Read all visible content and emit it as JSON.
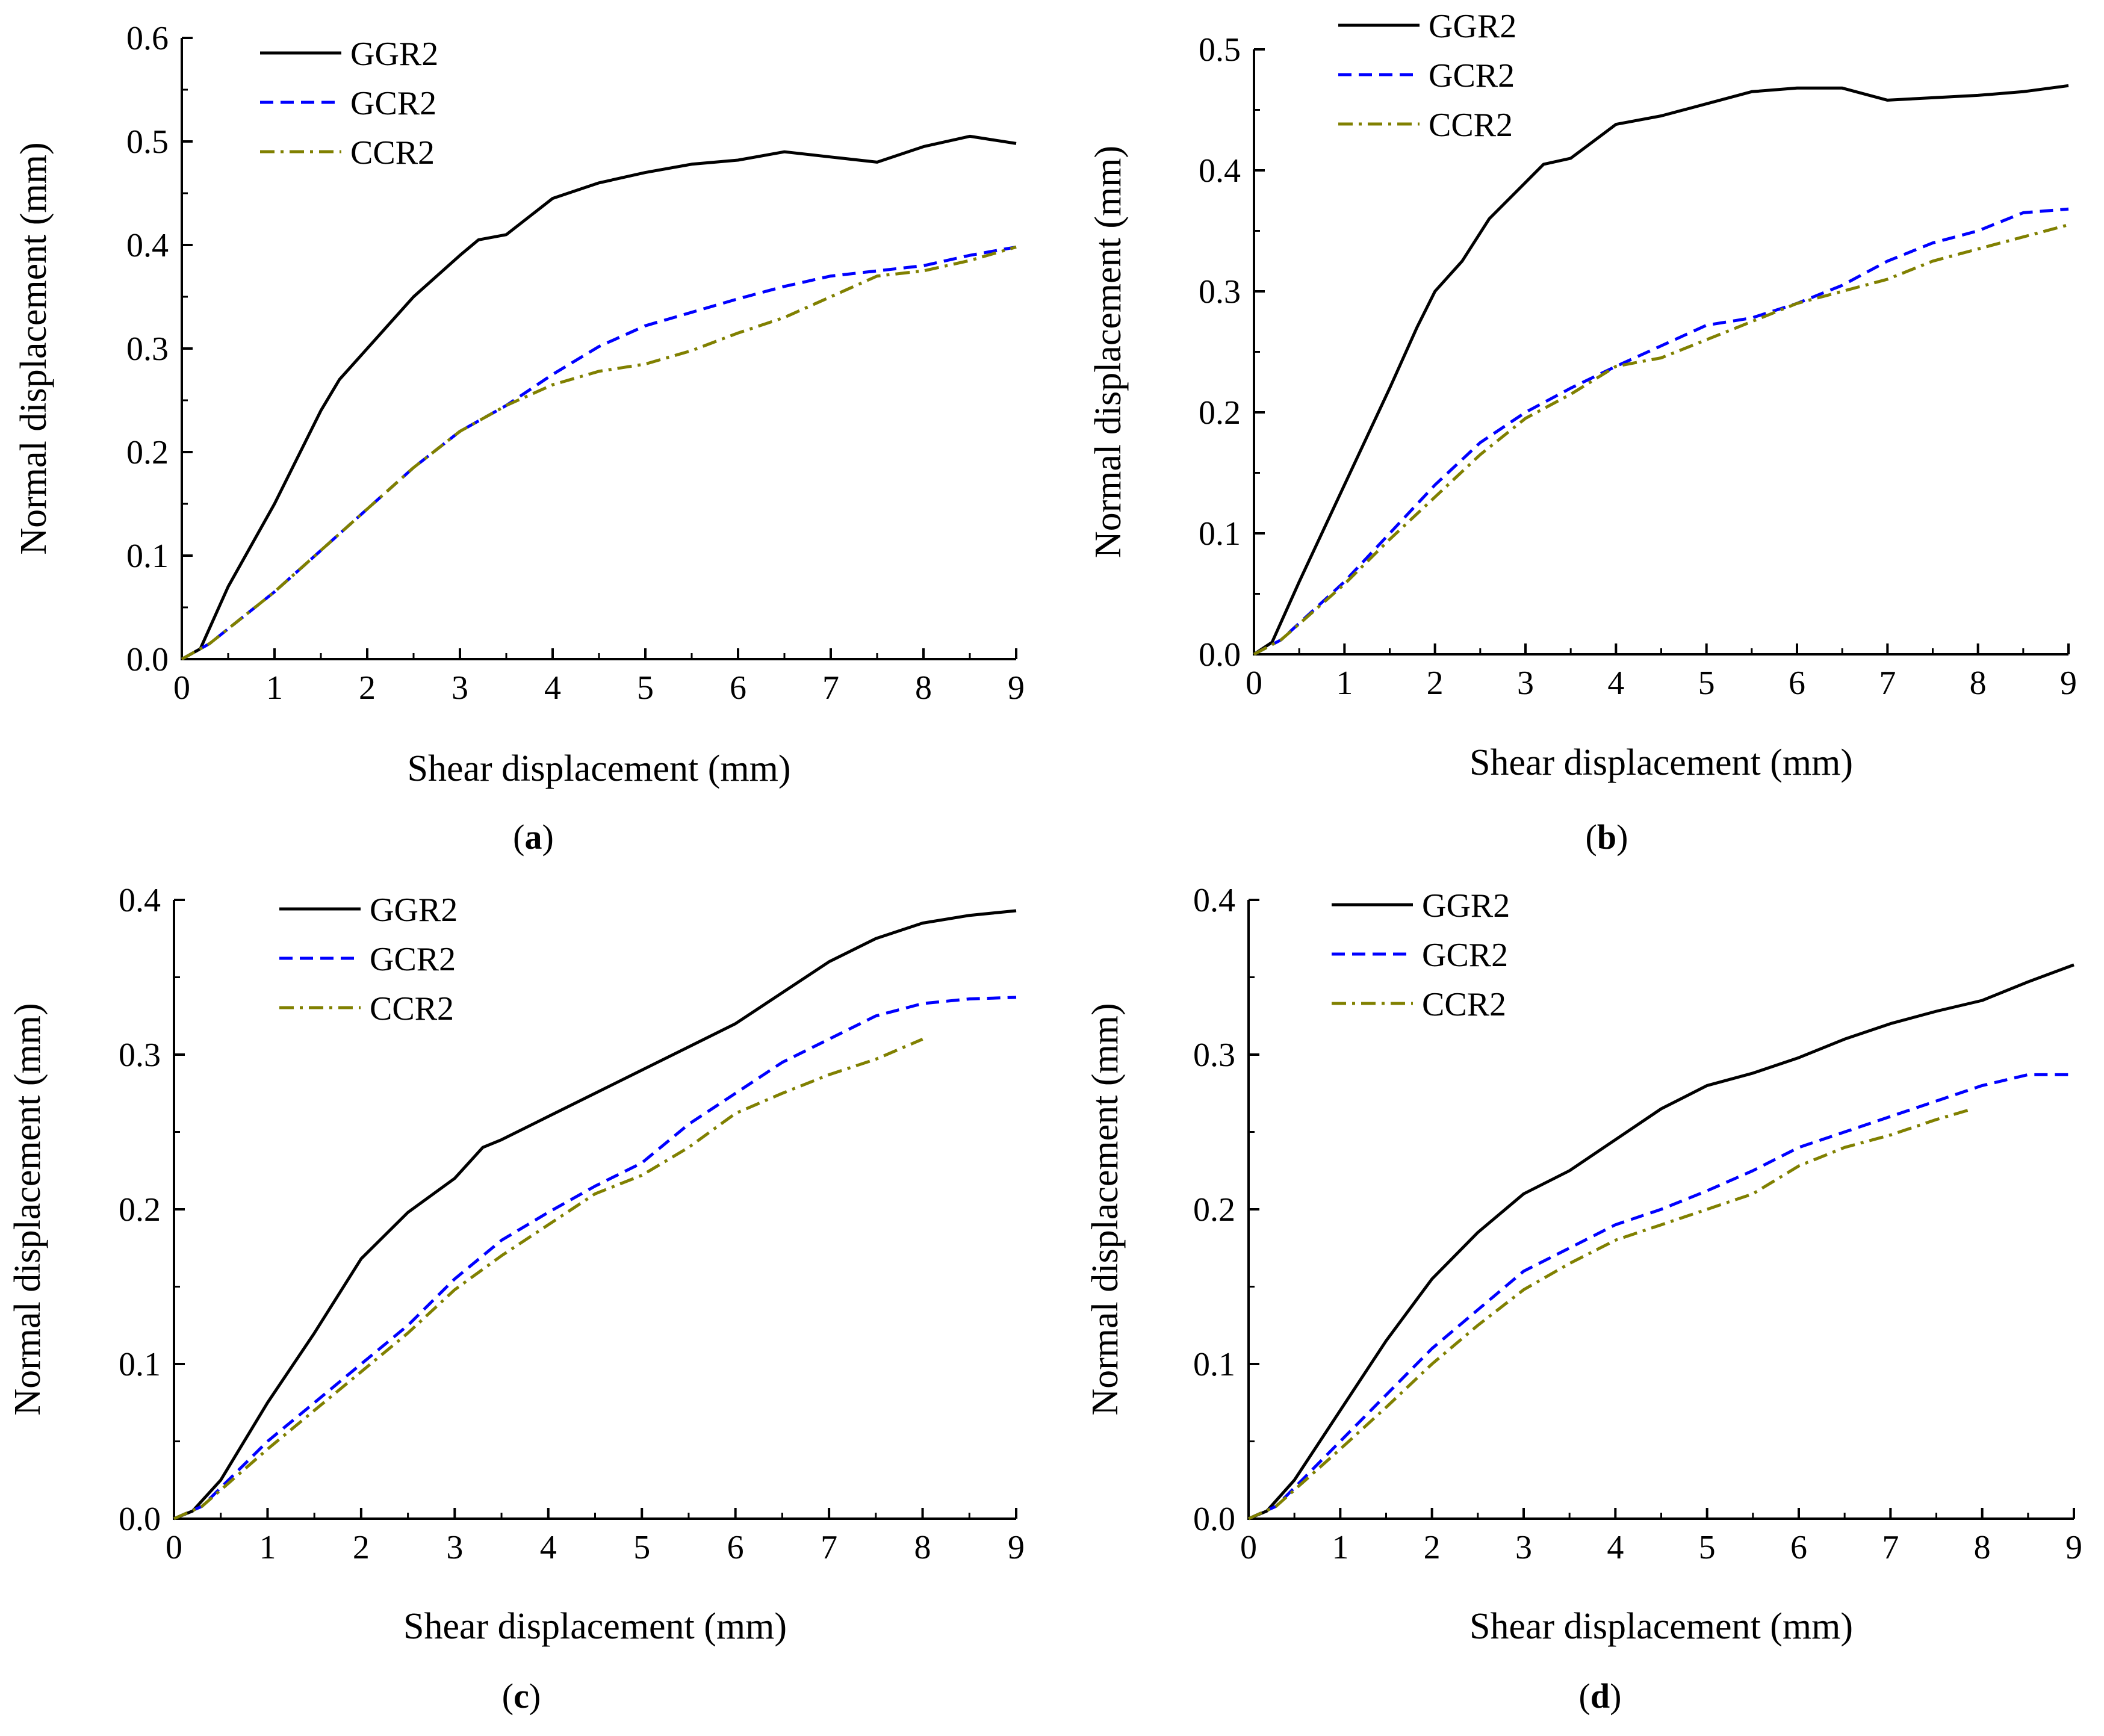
{
  "figure": {
    "panels": [
      {
        "label_prefix": "(",
        "label_letter": "a",
        "label_suffix": ")"
      },
      {
        "label_prefix": "(",
        "label_letter": "b",
        "label_suffix": ")"
      },
      {
        "label_prefix": "(",
        "label_letter": "c",
        "label_suffix": ")"
      },
      {
        "label_prefix": "(",
        "label_letter": "d",
        "label_suffix": ")"
      }
    ],
    "colors": {
      "GGR2": "#000000",
      "GCR2": "#0000ff",
      "CCR2": "#808000"
    }
  },
  "chart_data": [
    {
      "type": "line",
      "xlabel": "Shear displacement (mm)",
      "ylabel": "Normal displacement (mm)",
      "xlim": [
        0,
        9
      ],
      "ylim": [
        0,
        0.6
      ],
      "xticks": [
        "0",
        "1",
        "2",
        "3",
        "4",
        "5",
        "6",
        "7",
        "8",
        "9"
      ],
      "yticks": [
        "0.0",
        "0.1",
        "0.2",
        "0.3",
        "0.4",
        "0.5",
        "0.6"
      ],
      "legend_position": "top-left",
      "series": [
        {
          "name": "GGR2",
          "style": "solid",
          "x": [
            0,
            0.2,
            0.5,
            1,
            1.5,
            1.7,
            2,
            2.2,
            2.5,
            3,
            3.2,
            3.5,
            4,
            4.5,
            5,
            5.5,
            6,
            6.5,
            7,
            7.5,
            8,
            8.5,
            9
          ],
          "y": [
            0,
            0.01,
            0.07,
            0.15,
            0.24,
            0.27,
            0.3,
            0.32,
            0.35,
            0.39,
            0.405,
            0.41,
            0.445,
            0.46,
            0.47,
            0.478,
            0.482,
            0.49,
            0.485,
            0.48,
            0.495,
            0.505,
            0.498
          ]
        },
        {
          "name": "GCR2",
          "style": "dashed",
          "x": [
            0,
            0.3,
            1,
            1.5,
            2,
            2.5,
            3,
            3.5,
            4,
            4.5,
            5,
            5.5,
            6,
            6.5,
            7,
            7.5,
            8,
            8.5,
            9
          ],
          "y": [
            0,
            0.015,
            0.065,
            0.105,
            0.145,
            0.185,
            0.22,
            0.245,
            0.275,
            0.302,
            0.322,
            0.335,
            0.348,
            0.36,
            0.37,
            0.375,
            0.38,
            0.39,
            0.398
          ]
        },
        {
          "name": "CCR2",
          "style": "dashdot",
          "x": [
            0,
            0.3,
            1,
            1.5,
            2,
            2.5,
            3,
            3.5,
            4,
            4.5,
            5,
            5.5,
            6,
            6.5,
            7,
            7.5,
            8,
            8.5,
            9
          ],
          "y": [
            0,
            0.015,
            0.065,
            0.105,
            0.145,
            0.185,
            0.22,
            0.245,
            0.265,
            0.278,
            0.285,
            0.298,
            0.315,
            0.33,
            0.35,
            0.37,
            0.375,
            0.385,
            0.398
          ]
        }
      ]
    },
    {
      "type": "line",
      "xlabel": "Shear displacement (mm)",
      "ylabel": "Normal displacement (mm)",
      "xlim": [
        0,
        9
      ],
      "ylim": [
        0,
        0.5
      ],
      "xticks": [
        "0",
        "1",
        "2",
        "3",
        "4",
        "5",
        "6",
        "7",
        "8",
        "9"
      ],
      "yticks": [
        "0.0",
        "0.1",
        "0.2",
        "0.3",
        "0.4",
        "0.5"
      ],
      "legend_position": "top-left",
      "series": [
        {
          "name": "GGR2",
          "style": "solid",
          "x": [
            0,
            0.2,
            0.5,
            1,
            1.5,
            1.8,
            2,
            2.3,
            2.6,
            3,
            3.2,
            3.5,
            4,
            4.5,
            5,
            5.5,
            6,
            6.5,
            7,
            7.5,
            8,
            8.5,
            9
          ],
          "y": [
            0,
            0.01,
            0.06,
            0.14,
            0.22,
            0.27,
            0.3,
            0.325,
            0.36,
            0.39,
            0.405,
            0.41,
            0.438,
            0.445,
            0.455,
            0.465,
            0.468,
            0.468,
            0.458,
            0.46,
            0.462,
            0.465,
            0.47
          ]
        },
        {
          "name": "GCR2",
          "style": "dashed",
          "x": [
            0,
            0.3,
            1,
            1.5,
            2,
            2.5,
            3,
            3.5,
            4,
            4.5,
            5,
            5.5,
            6,
            6.5,
            7,
            7.5,
            8,
            8.5,
            9
          ],
          "y": [
            0,
            0.012,
            0.06,
            0.1,
            0.14,
            0.175,
            0.2,
            0.22,
            0.238,
            0.255,
            0.272,
            0.278,
            0.29,
            0.305,
            0.325,
            0.34,
            0.35,
            0.365,
            0.368
          ]
        },
        {
          "name": "CCR2",
          "style": "dashdot",
          "x": [
            0,
            0.3,
            1,
            1.5,
            2,
            2.5,
            3,
            3.5,
            4,
            4.5,
            5,
            5.5,
            6,
            6.5,
            7,
            7.5,
            8,
            8.5,
            9
          ],
          "y": [
            0,
            0.012,
            0.058,
            0.095,
            0.13,
            0.165,
            0.195,
            0.215,
            0.238,
            0.245,
            0.26,
            0.275,
            0.29,
            0.3,
            0.31,
            0.325,
            0.335,
            0.345,
            0.355
          ]
        }
      ]
    },
    {
      "type": "line",
      "xlabel": "Shear displacement (mm)",
      "ylabel": "Normal displacement (mm)",
      "xlim": [
        0,
        9
      ],
      "ylim": [
        0,
        0.4
      ],
      "xticks": [
        "0",
        "1",
        "2",
        "3",
        "4",
        "5",
        "6",
        "7",
        "8",
        "9"
      ],
      "yticks": [
        "0.0",
        "0.1",
        "0.2",
        "0.3",
        "0.4"
      ],
      "legend_position": "top-left",
      "series": [
        {
          "name": "GGR2",
          "style": "solid",
          "x": [
            0,
            0.2,
            0.5,
            1,
            1.5,
            2,
            2.5,
            3,
            3.3,
            3.5,
            4,
            4.5,
            5,
            5.5,
            6,
            6.5,
            7,
            7.5,
            8,
            8.5,
            9
          ],
          "y": [
            0,
            0.005,
            0.025,
            0.075,
            0.12,
            0.168,
            0.198,
            0.22,
            0.24,
            0.245,
            0.26,
            0.275,
            0.29,
            0.305,
            0.32,
            0.34,
            0.36,
            0.375,
            0.385,
            0.39,
            0.393
          ]
        },
        {
          "name": "GCR2",
          "style": "dashed",
          "x": [
            0,
            0.3,
            1,
            1.5,
            2,
            2.5,
            3,
            3.5,
            4,
            4.5,
            5,
            5.5,
            6,
            6.5,
            7,
            7.5,
            8,
            8.5,
            9
          ],
          "y": [
            0,
            0.008,
            0.05,
            0.075,
            0.1,
            0.125,
            0.155,
            0.18,
            0.198,
            0.215,
            0.23,
            0.255,
            0.275,
            0.295,
            0.31,
            0.325,
            0.333,
            0.336,
            0.337
          ]
        },
        {
          "name": "CCR2",
          "style": "dashdot",
          "x": [
            0,
            0.3,
            1,
            1.5,
            2,
            2.5,
            3,
            3.5,
            4,
            4.5,
            5,
            5.5,
            6,
            6.5,
            7,
            7.5,
            8
          ],
          "y": [
            0,
            0.008,
            0.045,
            0.07,
            0.095,
            0.12,
            0.148,
            0.17,
            0.19,
            0.21,
            0.222,
            0.24,
            0.262,
            0.275,
            0.287,
            0.297,
            0.31
          ]
        }
      ]
    },
    {
      "type": "line",
      "xlabel": "Shear displacement (mm)",
      "ylabel": "Normal displacement (mm)",
      "xlim": [
        0,
        9
      ],
      "ylim": [
        0,
        0.4
      ],
      "xticks": [
        "0",
        "1",
        "2",
        "3",
        "4",
        "5",
        "6",
        "7",
        "8",
        "9"
      ],
      "yticks": [
        "0.0",
        "0.1",
        "0.2",
        "0.3",
        "0.4"
      ],
      "legend_position": "top-left",
      "series": [
        {
          "name": "GGR2",
          "style": "solid",
          "x": [
            0,
            0.2,
            0.5,
            1,
            1.5,
            2,
            2.5,
            3,
            3.5,
            4,
            4.5,
            5,
            5.5,
            6,
            6.5,
            7,
            7.5,
            8,
            8.5,
            9
          ],
          "y": [
            0,
            0.005,
            0.025,
            0.07,
            0.115,
            0.155,
            0.185,
            0.21,
            0.225,
            0.245,
            0.265,
            0.28,
            0.288,
            0.298,
            0.31,
            0.32,
            0.328,
            0.335,
            0.347,
            0.358
          ]
        },
        {
          "name": "GCR2",
          "style": "dashed",
          "x": [
            0,
            0.3,
            1,
            1.5,
            2,
            2.5,
            3,
            3.5,
            4,
            4.5,
            5,
            5.5,
            6,
            6.5,
            7,
            7.5,
            8,
            8.5,
            9
          ],
          "y": [
            0,
            0.008,
            0.05,
            0.08,
            0.11,
            0.135,
            0.16,
            0.175,
            0.19,
            0.2,
            0.212,
            0.225,
            0.24,
            0.25,
            0.26,
            0.27,
            0.28,
            0.287,
            0.287
          ]
        },
        {
          "name": "CCR2",
          "style": "dashdot",
          "x": [
            0,
            0.3,
            1,
            1.5,
            2,
            2.5,
            3,
            3.5,
            4,
            4.5,
            5,
            5.5,
            6,
            6.5,
            7,
            7.5,
            7.9
          ],
          "y": [
            0,
            0.008,
            0.045,
            0.072,
            0.1,
            0.125,
            0.148,
            0.165,
            0.18,
            0.19,
            0.2,
            0.21,
            0.228,
            0.24,
            0.248,
            0.258,
            0.265
          ]
        }
      ]
    }
  ]
}
